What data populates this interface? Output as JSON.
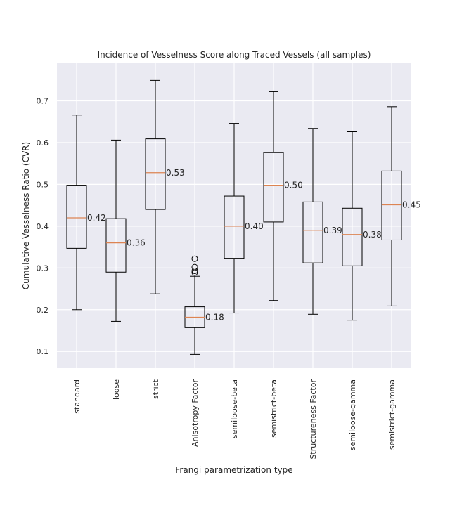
{
  "chart_data": {
    "type": "box",
    "title": "Incidence of Vesselness Score along Traced Vessels (all samples)",
    "xlabel": "Frangi parametrization type",
    "ylabel": "Cumulative Vesselness Ratio (CVR)",
    "ylim": [
      0.06,
      0.79
    ],
    "yticks": [
      0.1,
      0.2,
      0.3,
      0.4,
      0.5,
      0.6,
      0.7
    ],
    "grid": true,
    "colors": {
      "background": "#eaeaf2",
      "grid": "#ffffff",
      "box": "#000000",
      "median": "#dd8452"
    },
    "categories": [
      "standard",
      "loose",
      "strict",
      "Anisotropy Factor",
      "semiloose-beta",
      "semistrict-beta",
      "Structureness Factor",
      "semiloose-gamma",
      "semistrict-gamma"
    ],
    "boxes": [
      {
        "whisker_low": 0.2,
        "q1": 0.347,
        "median": 0.42,
        "q3": 0.498,
        "whisker_high": 0.666,
        "median_label": "0.42",
        "outliers": []
      },
      {
        "whisker_low": 0.172,
        "q1": 0.29,
        "median": 0.36,
        "q3": 0.418,
        "whisker_high": 0.606,
        "median_label": "0.36",
        "outliers": []
      },
      {
        "whisker_low": 0.238,
        "q1": 0.44,
        "median": 0.528,
        "q3": 0.609,
        "whisker_high": 0.749,
        "median_label": "0.53",
        "outliers": []
      },
      {
        "whisker_low": 0.093,
        "q1": 0.157,
        "median": 0.182,
        "q3": 0.207,
        "whisker_high": 0.28,
        "median_label": "0.18",
        "outliers": [
          0.289,
          0.293,
          0.302,
          0.322
        ]
      },
      {
        "whisker_low": 0.192,
        "q1": 0.323,
        "median": 0.4,
        "q3": 0.472,
        "whisker_high": 0.646,
        "median_label": "0.40",
        "outliers": []
      },
      {
        "whisker_low": 0.222,
        "q1": 0.41,
        "median": 0.498,
        "q3": 0.576,
        "whisker_high": 0.722,
        "median_label": "0.50",
        "outliers": []
      },
      {
        "whisker_low": 0.189,
        "q1": 0.312,
        "median": 0.39,
        "q3": 0.458,
        "whisker_high": 0.634,
        "median_label": "0.39",
        "outliers": []
      },
      {
        "whisker_low": 0.175,
        "q1": 0.305,
        "median": 0.38,
        "q3": 0.443,
        "whisker_high": 0.626,
        "median_label": "0.38",
        "outliers": []
      },
      {
        "whisker_low": 0.209,
        "q1": 0.367,
        "median": 0.451,
        "q3": 0.532,
        "whisker_high": 0.686,
        "median_label": "0.45",
        "outliers": []
      }
    ]
  }
}
